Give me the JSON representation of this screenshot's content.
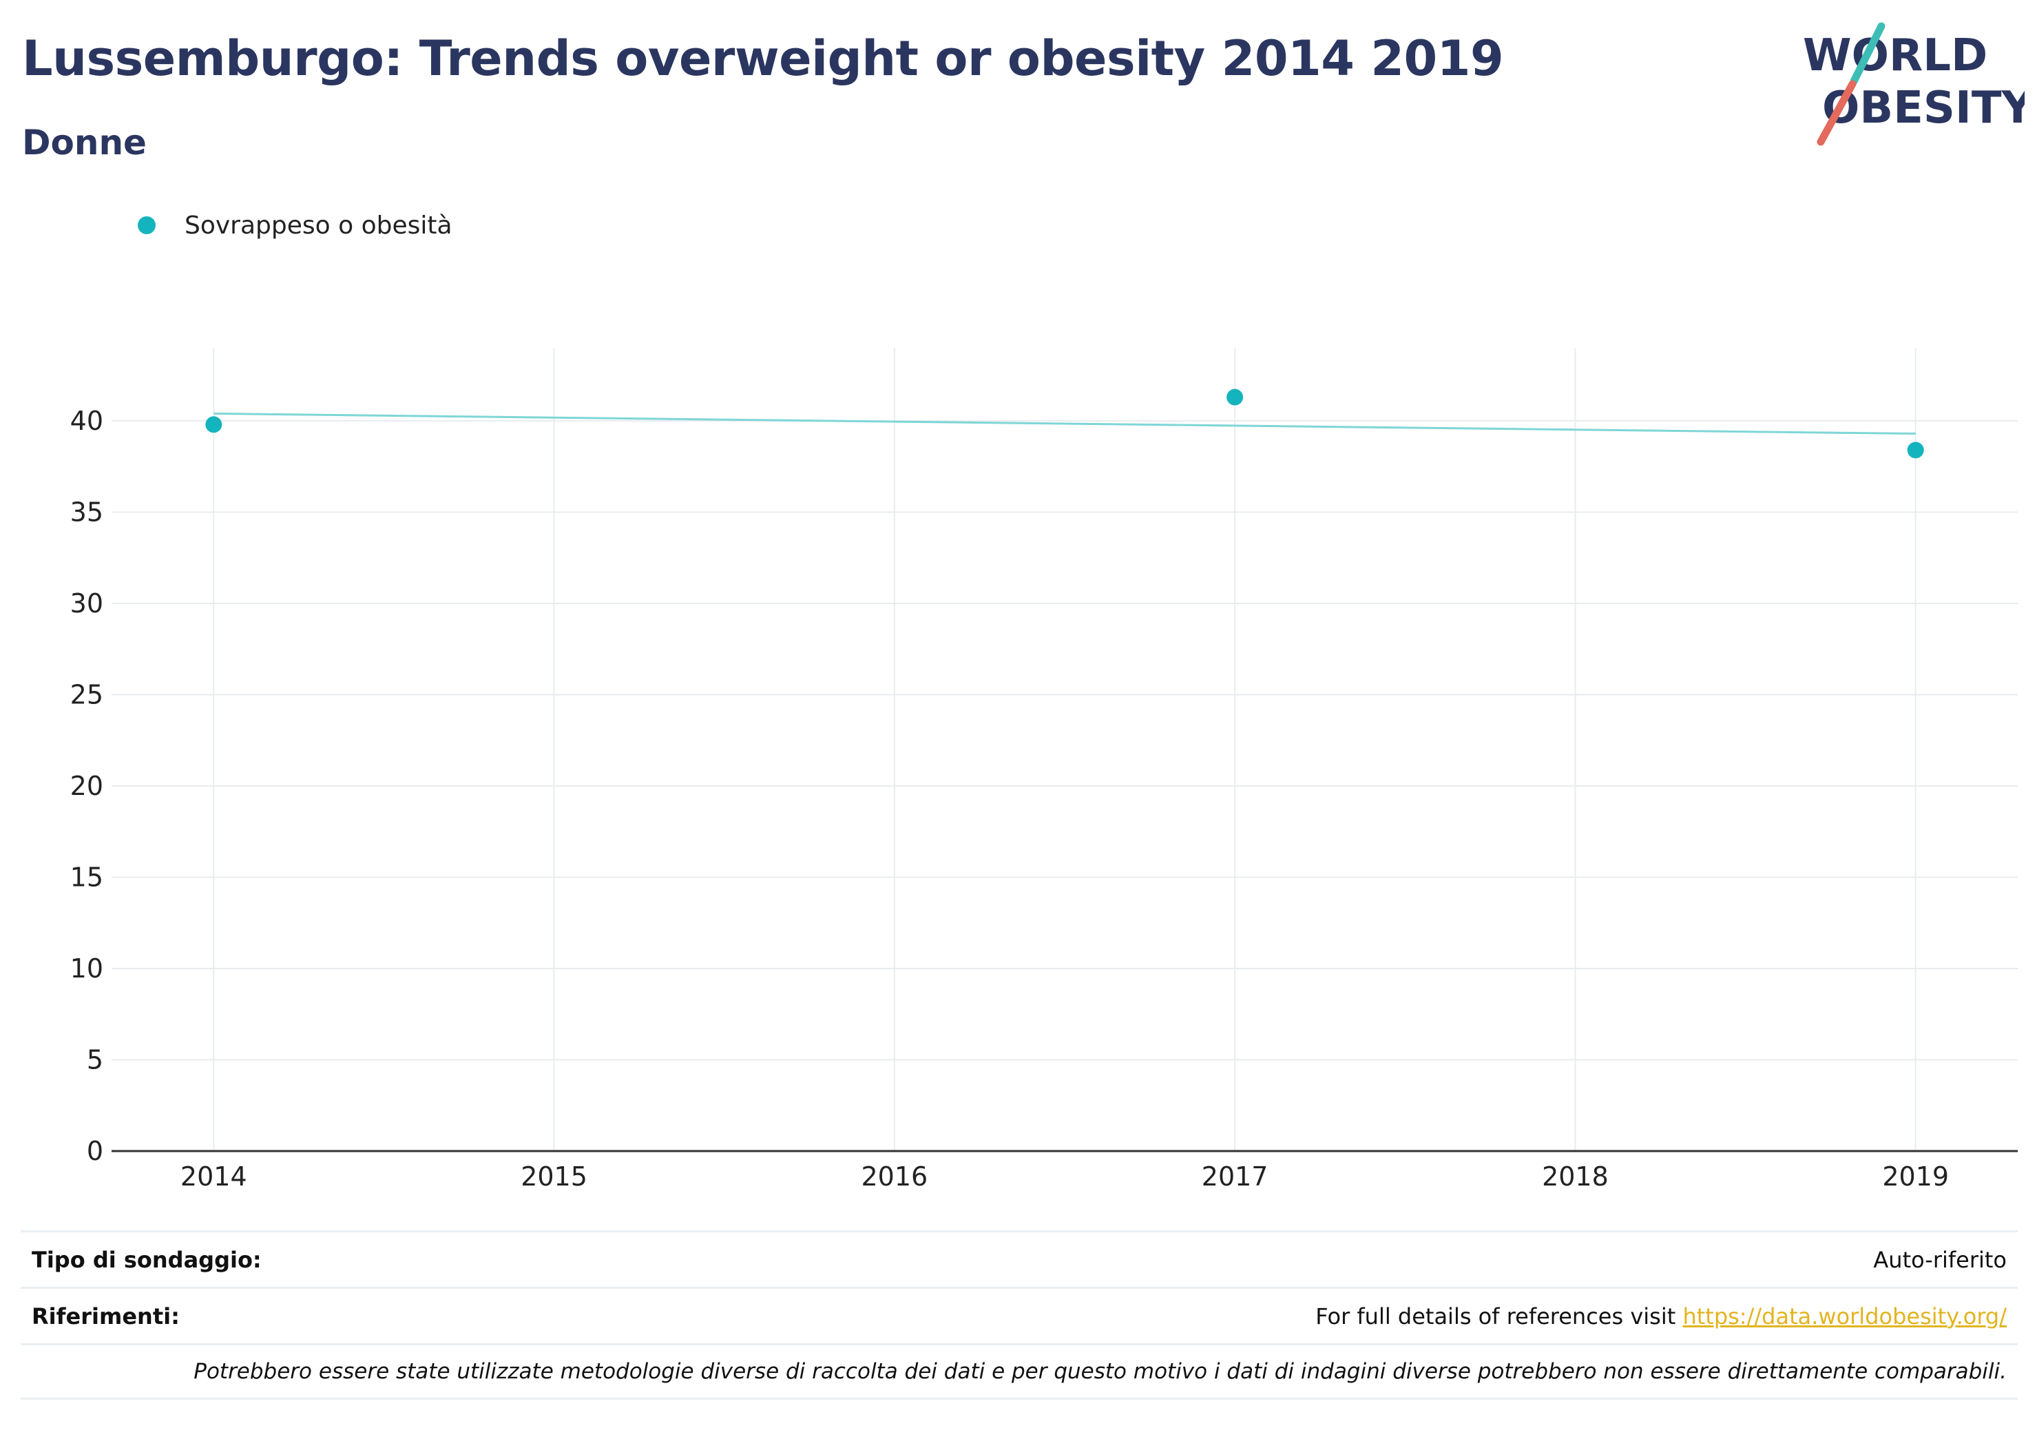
{
  "header": {
    "title": "Lussemburgo: Trends overweight or obesity 2014 2019",
    "subtitle": "Donne"
  },
  "logo": {
    "line1": "WORLD",
    "line2": "OBESITY",
    "colors": {
      "text": "#2b3660",
      "slash_top": "#3dbdb6",
      "slash_bottom": "#e36a5c"
    }
  },
  "legend": {
    "items": [
      {
        "label": "Sovrappeso o obesità",
        "color": "#14b4be"
      }
    ]
  },
  "chart_data": {
    "type": "scatter",
    "x": [
      2014,
      2017,
      2019
    ],
    "series": [
      {
        "name": "Sovrappeso o obesità",
        "color": "#14b4be",
        "values": [
          39.8,
          41.3,
          38.4
        ]
      }
    ],
    "trendline": {
      "color": "#7fd6d6",
      "x": [
        2014,
        2019
      ],
      "y": [
        40.4,
        39.3
      ]
    },
    "xlim": [
      2013.7,
      2019.3
    ],
    "ylim": [
      0,
      44
    ],
    "xticks": [
      2014,
      2015,
      2016,
      2017,
      2018,
      2019
    ],
    "yticks": [
      0,
      5,
      10,
      15,
      20,
      25,
      30,
      35,
      40
    ],
    "grid": true,
    "legend_position": "top-left"
  },
  "footer": {
    "survey_label": "Tipo di sondaggio:",
    "survey_value": "Auto-riferito",
    "references_label": "Riferimenti:",
    "references_text": "For full details of references visit ",
    "references_link": "https://data.worldobesity.org/",
    "note": "Potrebbero essere state utilizzate metodologie diverse di raccolta dei dati e per questo motivo i dati di indagini diverse potrebbero non essere direttamente comparabili."
  }
}
